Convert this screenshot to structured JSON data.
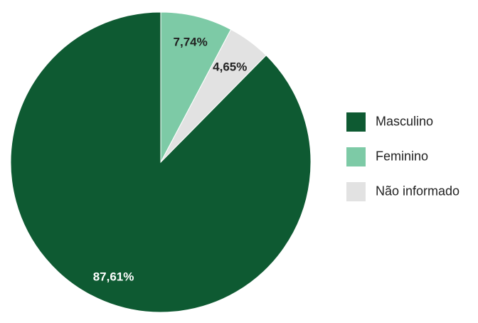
{
  "chart_data": {
    "type": "pie",
    "categories": [
      "Masculino",
      "Feminino",
      "Não informado"
    ],
    "values": [
      87.61,
      7.74,
      4.65
    ],
    "labels": [
      "87,61%",
      "7,74%",
      "4,65%"
    ],
    "colors": [
      "#0e5a32",
      "#7dcaa6",
      "#e2e2e2"
    ],
    "label_colors": [
      "#ffffff",
      "#222222",
      "#222222"
    ],
    "start_angle_deg": 0,
    "direction": "clockwise",
    "legend_position": "right"
  }
}
